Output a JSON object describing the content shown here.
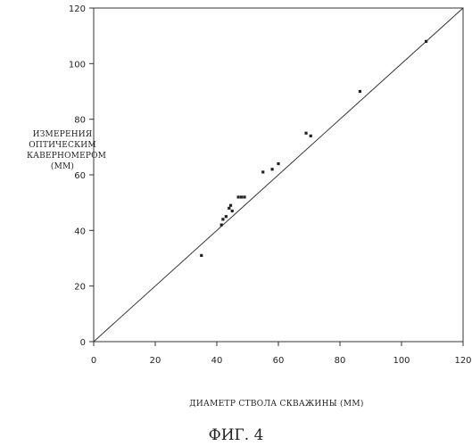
{
  "chart_data": {
    "type": "scatter",
    "title": "",
    "xlabel": "ДИАМЕТР СТВОЛА СКВАЖИНЫ (ММ)",
    "ylabel_lines": [
      "ИЗМЕРЕНИЯ",
      "ОПТИЧЕСКИМ",
      "КАВЕРНОМЕРОМ",
      "(ММ)"
    ],
    "xlim": [
      0,
      120
    ],
    "ylim": [
      0,
      120
    ],
    "xticks": [
      0,
      20,
      40,
      60,
      80,
      100,
      120
    ],
    "yticks": [
      0,
      20,
      40,
      60,
      80,
      100,
      120
    ],
    "grid": false,
    "reference_line": [
      [
        0,
        0
      ],
      [
        120,
        120
      ]
    ],
    "points": [
      {
        "x": 35,
        "y": 31
      },
      {
        "x": 41.5,
        "y": 42
      },
      {
        "x": 42,
        "y": 44
      },
      {
        "x": 43,
        "y": 45
      },
      {
        "x": 44,
        "y": 48
      },
      {
        "x": 44.5,
        "y": 49
      },
      {
        "x": 45,
        "y": 47
      },
      {
        "x": 47,
        "y": 52
      },
      {
        "x": 48,
        "y": 52
      },
      {
        "x": 49,
        "y": 52
      },
      {
        "x": 55,
        "y": 61
      },
      {
        "x": 58,
        "y": 62
      },
      {
        "x": 60,
        "y": 64
      },
      {
        "x": 69,
        "y": 75
      },
      {
        "x": 70.5,
        "y": 74
      },
      {
        "x": 86.5,
        "y": 90
      },
      {
        "x": 108,
        "y": 108
      }
    ]
  },
  "caption": "ФИГ. 4"
}
